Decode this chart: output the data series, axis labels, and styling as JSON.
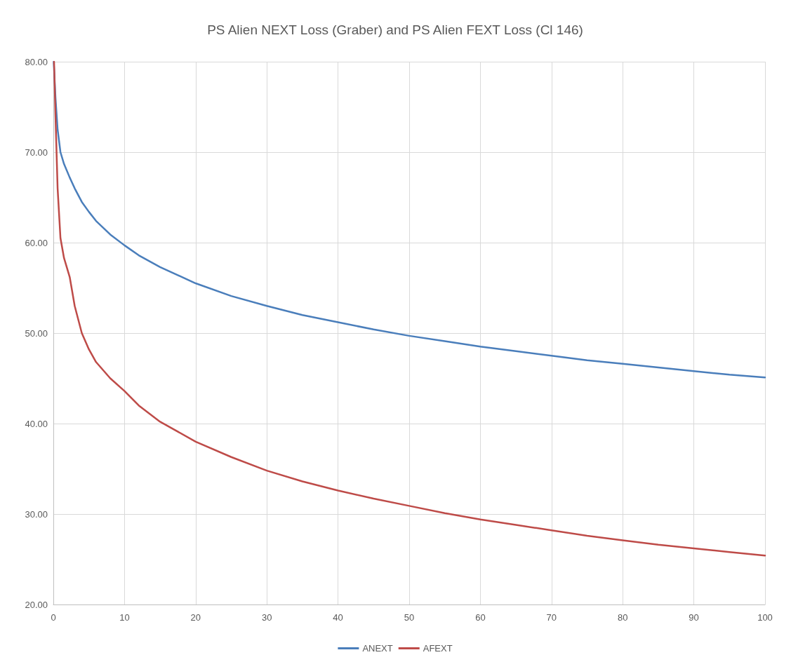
{
  "chart_data": {
    "type": "line",
    "title": "PS Alien NEXT Loss (Graber) and PS Alien FEXT Loss (Cl 146)",
    "xlim": [
      0,
      100
    ],
    "xticks": [
      0,
      10,
      20,
      30,
      40,
      50,
      60,
      70,
      80,
      90,
      100
    ],
    "ylim": [
      20,
      80
    ],
    "yticks": [
      {
        "value": 20,
        "label": "20.00"
      },
      {
        "value": 30,
        "label": "30.00"
      },
      {
        "value": 40,
        "label": "40.00"
      },
      {
        "value": 50,
        "label": "50.00"
      },
      {
        "value": 60,
        "label": "60.00"
      },
      {
        "value": 70,
        "label": "70.00"
      },
      {
        "value": 80,
        "label": "80.00"
      }
    ],
    "grid": true,
    "legend": "bottom",
    "marker": "none",
    "line_style": "solid",
    "series": [
      {
        "name": "ANEXT",
        "color": "#4a7ebb",
        "x": [
          0.05,
          0.3,
          0.6,
          1,
          1.5,
          2.3,
          3,
          4,
          5,
          6,
          8,
          10,
          12,
          15,
          20,
          25,
          30,
          35,
          40,
          45,
          50,
          55,
          60,
          65,
          70,
          75,
          80,
          85,
          90,
          95,
          100
        ],
        "values": [
          80,
          76,
          72.5,
          70,
          68.7,
          67.2,
          66,
          64.5,
          63.4,
          62.4,
          60.9,
          59.7,
          58.6,
          57.3,
          55.5,
          54.1,
          53,
          52,
          51.2,
          50.4,
          49.7,
          49.1,
          48.5,
          48,
          47.5,
          47,
          46.6,
          46.2,
          45.8,
          45.4,
          45.1
        ]
      },
      {
        "name": "AFEXT",
        "color": "#be4b48",
        "x": [
          0.1,
          0.3,
          0.6,
          1,
          1.5,
          2.3,
          3,
          4,
          5,
          6,
          8,
          10,
          12,
          15,
          20,
          25,
          30,
          35,
          40,
          45,
          50,
          55,
          60,
          65,
          70,
          75,
          80,
          85,
          90,
          95,
          100
        ],
        "values": [
          80,
          74,
          66,
          60.5,
          58.3,
          56.2,
          53,
          50,
          48.2,
          46.8,
          45,
          43.6,
          42,
          40.2,
          38,
          36.3,
          34.8,
          33.6,
          32.6,
          31.7,
          30.9,
          30.1,
          29.4,
          28.8,
          28.2,
          27.6,
          27.1,
          26.6,
          26.2,
          25.8,
          25.4
        ]
      }
    ]
  }
}
